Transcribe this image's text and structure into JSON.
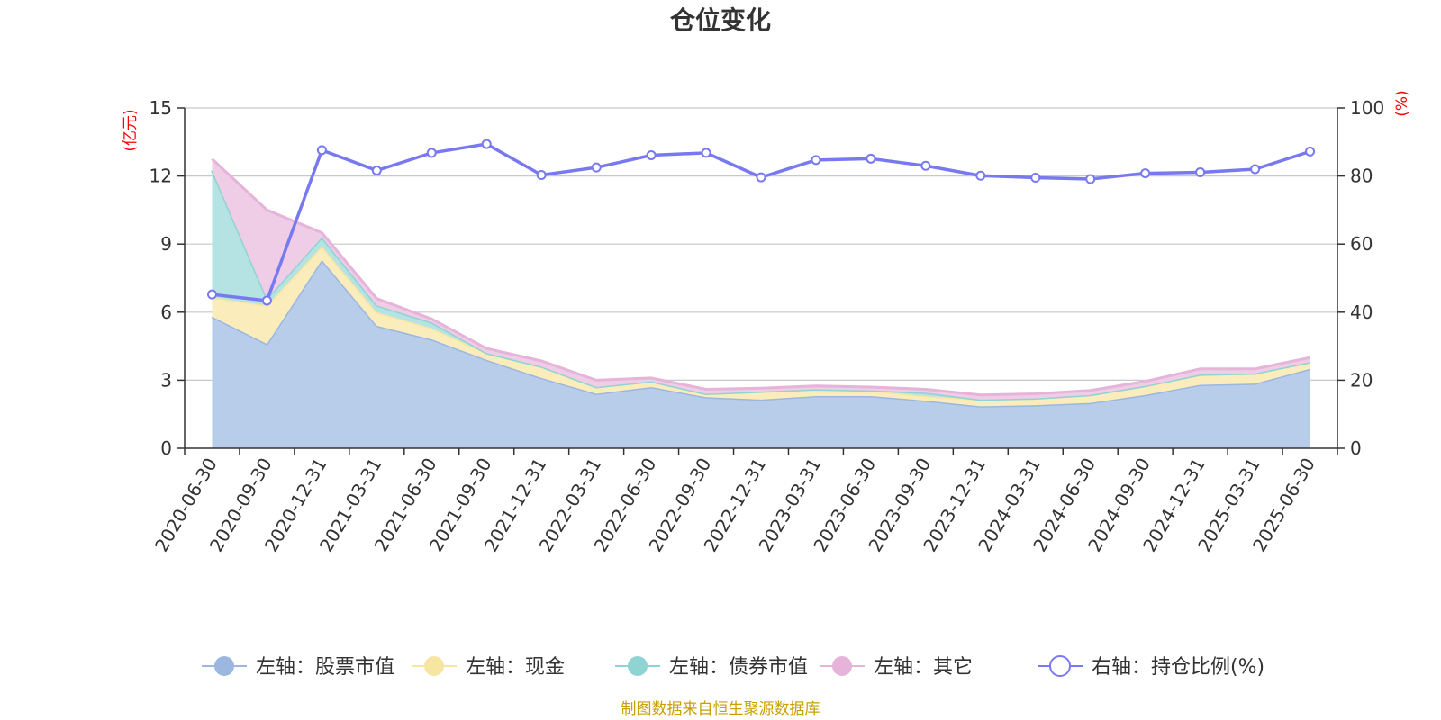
{
  "chart_data": {
    "type": "area",
    "title": "仓位变化",
    "left_axis_unit": "(亿元)",
    "right_axis_unit": "(%)",
    "left_ylim": [
      0,
      15
    ],
    "left_yticks": [
      "0",
      "3",
      "6",
      "9",
      "12",
      "15"
    ],
    "right_ylim": [
      0,
      100
    ],
    "right_yticks": [
      "0",
      "20",
      "40",
      "60",
      "80",
      "100"
    ],
    "grid": true,
    "legend_position": "bottom",
    "categories": [
      "2020-06-30",
      "2020-09-30",
      "2020-12-31",
      "2021-03-31",
      "2021-06-30",
      "2021-09-30",
      "2021-12-31",
      "2022-03-31",
      "2022-06-30",
      "2022-09-30",
      "2022-12-31",
      "2023-03-31",
      "2023-06-30",
      "2023-09-30",
      "2023-12-31",
      "2024-03-31",
      "2024-06-30",
      "2024-09-30",
      "2024-12-31",
      "2025-03-31",
      "2025-06-30"
    ],
    "stacked_series": [
      {
        "name": "左轴：股票市值",
        "color": "#9bb7e0",
        "fill": "#b8cdea",
        "values": [
          5.8,
          4.6,
          8.3,
          5.4,
          4.8,
          3.9,
          3.1,
          2.4,
          2.7,
          2.25,
          2.15,
          2.3,
          2.3,
          2.1,
          1.85,
          1.9,
          2.0,
          2.35,
          2.8,
          2.85,
          3.5
        ]
      },
      {
        "name": "左轴：现金",
        "color": "#f7e5a2",
        "fill": "#faecbb",
        "values": [
          0.85,
          1.7,
          0.6,
          0.6,
          0.5,
          0.3,
          0.5,
          0.3,
          0.25,
          0.15,
          0.35,
          0.3,
          0.25,
          0.2,
          0.3,
          0.3,
          0.35,
          0.4,
          0.45,
          0.45,
          0.3
        ]
      },
      {
        "name": "左轴：债券市值",
        "color": "#8fd3d3",
        "fill": "#b5e3e3",
        "values": [
          5.6,
          0.3,
          0.4,
          0.3,
          0.25,
          0.0,
          0.0,
          0.0,
          0.0,
          0.0,
          0.0,
          0.0,
          0.0,
          0.15,
          0.0,
          0.0,
          0.0,
          0.0,
          0.0,
          0.0,
          0.0
        ]
      },
      {
        "name": "左轴：其它",
        "color": "#e6b3d9",
        "fill": "#efcde6",
        "values": [
          0.5,
          3.9,
          0.2,
          0.3,
          0.15,
          0.2,
          0.25,
          0.3,
          0.15,
          0.2,
          0.15,
          0.15,
          0.15,
          0.15,
          0.2,
          0.2,
          0.2,
          0.2,
          0.25,
          0.2,
          0.2
        ]
      }
    ],
    "line_series": {
      "name": "右轴：持仓比例(%)",
      "color": "#7878f0",
      "values": [
        45.2,
        43.4,
        87.6,
        81.6,
        86.8,
        89.4,
        80.3,
        82.5,
        86.1,
        86.8,
        79.6,
        84.7,
        85.1,
        83.0,
        80.1,
        79.5,
        79.1,
        80.8,
        81.1,
        82.0,
        87.2
      ]
    }
  },
  "legend": {
    "items": [
      "左轴：股票市值",
      "左轴：现金",
      "左轴：债券市值",
      "左轴：其它",
      "右轴：持仓比例(%)"
    ]
  },
  "source": "制图数据来自恒生聚源数据库",
  "colors": {
    "axis": "#333333",
    "grid": "#c8c8c8",
    "unit": "#ff0000",
    "source": "#c8a000"
  }
}
